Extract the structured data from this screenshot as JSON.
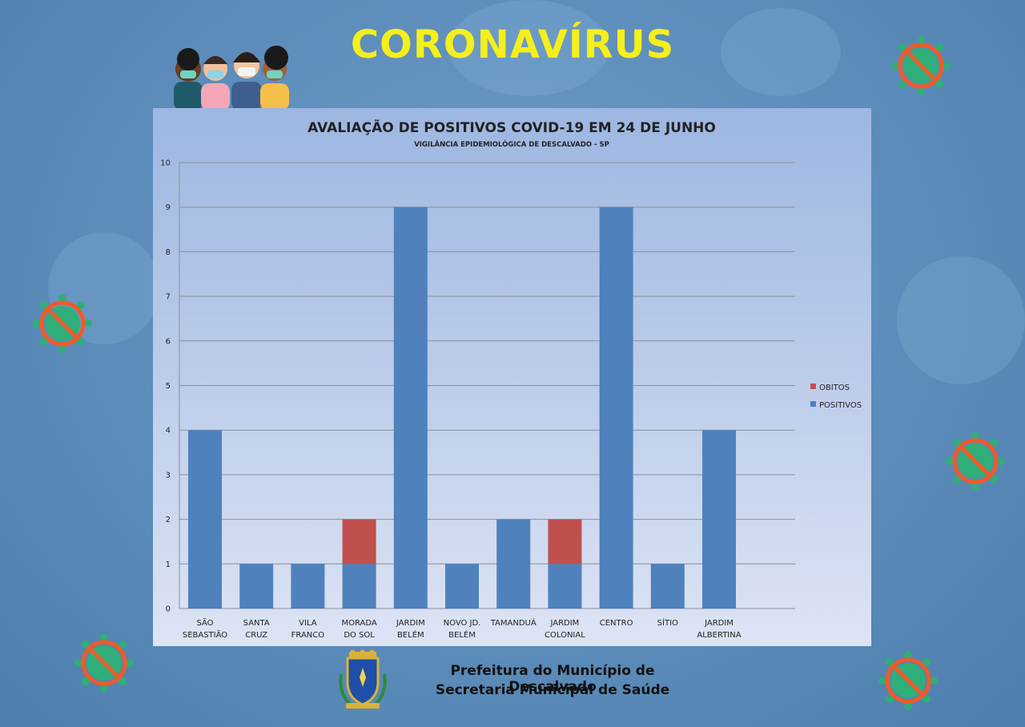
{
  "headline": "CORONAVÍRUS",
  "footer": {
    "line1": "Prefeitura do Município de Descalvado",
    "line2": "Secretaria Municipal de Saúde"
  },
  "colors": {
    "positivos": "#4f81bd",
    "obitos": "#c0504d",
    "headline": "#f5ef1b"
  },
  "chart_data": {
    "type": "bar",
    "stacked": true,
    "title": "AVALIAÇÃO DE POSITIVOS COVID-19 EM 24 DE JUNHO",
    "subtitle": "VIGILÂNCIA EPIDEMIOLÓGICA DE DESCALVADO - SP",
    "categories": [
      [
        "SÃO",
        "SEBASTIÃO"
      ],
      [
        "SANTA",
        "CRUZ"
      ],
      [
        "VILA",
        "FRANCO"
      ],
      [
        "MORADA",
        "DO SOL"
      ],
      [
        "JARDIM",
        "BELÉM"
      ],
      [
        "NOVO JD.",
        "BELÉM"
      ],
      [
        "TAMANDUÁ"
      ],
      [
        "JARDIM",
        "COLONIAL"
      ],
      [
        "CENTRO"
      ],
      [
        "SÍTIO"
      ],
      [
        "JARDIM",
        "ALBERTINA"
      ]
    ],
    "series": [
      {
        "name": "POSITIVOS",
        "values": [
          4,
          1,
          1,
          1,
          9,
          1,
          2,
          1,
          9,
          1,
          4
        ]
      },
      {
        "name": "OBITOS",
        "values": [
          0,
          0,
          0,
          1,
          0,
          0,
          0,
          1,
          0,
          0,
          0
        ]
      }
    ],
    "ylim": [
      0,
      10
    ],
    "yticks": [
      "0",
      "1",
      "2",
      "3",
      "4",
      "5",
      "6",
      "7",
      "8",
      "9",
      "10"
    ],
    "legend": [
      "OBITOS",
      "POSITIVOS"
    ],
    "legend_position": "right",
    "grid": true
  }
}
